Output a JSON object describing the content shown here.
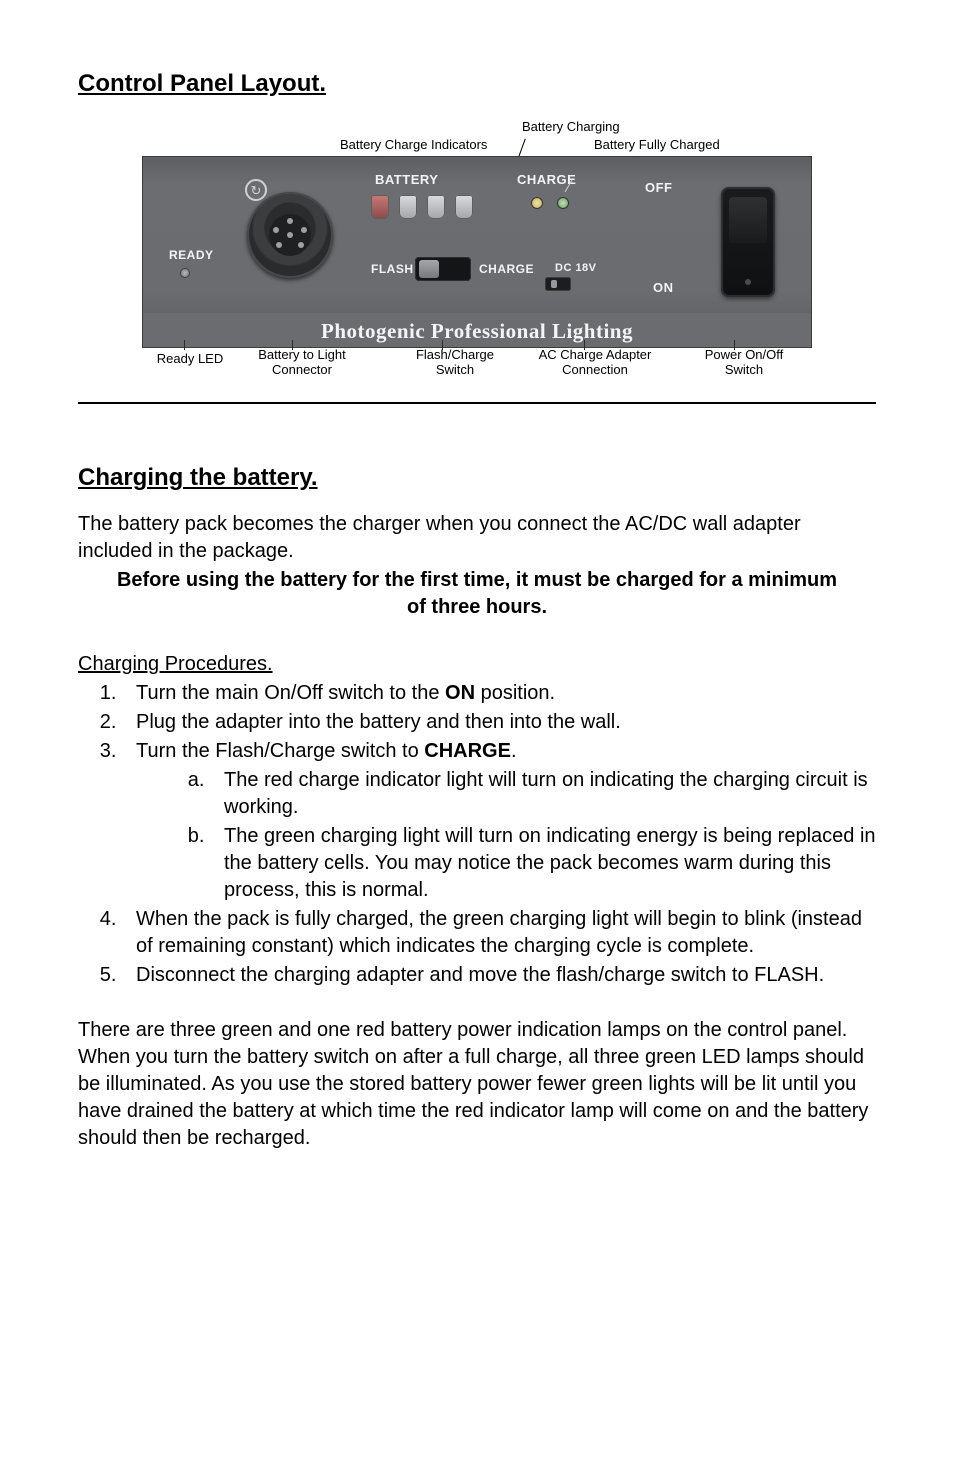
{
  "section1_title": "Control Panel Layout.",
  "section2_title": "Charging the battery.",
  "panel": {
    "top_annotations": {
      "battery_charge_indicators": "Battery Charge Indicators",
      "battery_charging": "Battery Charging",
      "battery_fully_charged": "Battery Fully Charged"
    },
    "labels": {
      "ready": "READY",
      "battery": "BATTERY",
      "charge": "CHARGE",
      "off": "OFF",
      "on": "ON",
      "flash": "FLASH",
      "charge2": "CHARGE",
      "dc18v": "DC 18V"
    },
    "brand": "Photogenic Professional Lighting",
    "bottom_annotations": {
      "ready_led": "Ready LED",
      "battery_to_light_connector": "Battery to Light\nConnector",
      "flash_charge_switch": "Flash/Charge\nSwitch",
      "ac_charge_adapter_connection": "AC Charge Adapter\nConnection",
      "power_switch": "Power On/Off\nSwitch"
    },
    "colors": {
      "panel_bg": "#6a6c6f",
      "panel_text": "#f2f3f5",
      "led_green": "#bfe3b1",
      "led_red": "#c97a78",
      "rocker": "#141516"
    }
  },
  "intro_p": "The battery pack becomes the charger when you connect the AC/DC wall adapter included in the package.",
  "emph_line": "Before using the battery for the first time, it must be charged for a minimum of three hours.",
  "procedures_heading": "Charging Procedures.",
  "step1_pre": "Turn the main On/Off switch to the ",
  "step1_bold": "ON",
  "step1_post": " position.",
  "step2": "Plug the adapter into the battery and then into the wall.",
  "step3_pre": "Turn the Flash/Charge switch to ",
  "step3_bold": "CHARGE",
  "step3_post": ".",
  "step3a": "The red charge indicator light will turn on indicating the charging circuit is working.",
  "step3b": "The green charging light will turn on indicating energy is being replaced in the battery cells.  You may notice the pack becomes warm during this process, this is normal.",
  "step4": "When the pack is fully charged, the green charging light will begin to blink (instead of remaining constant) which indicates the charging cycle is complete.",
  "step5": "Disconnect the charging adapter and move the flash/charge switch to FLASH.",
  "trailer_p": "There are three green and one red battery power indication lamps on the control panel.  When you turn the battery switch on after a full charge, all three green LED lamps should be illuminated.  As you use the stored battery power fewer green lights will be lit until you have drained the battery at which time the red indicator lamp will come on and the battery should then be recharged."
}
